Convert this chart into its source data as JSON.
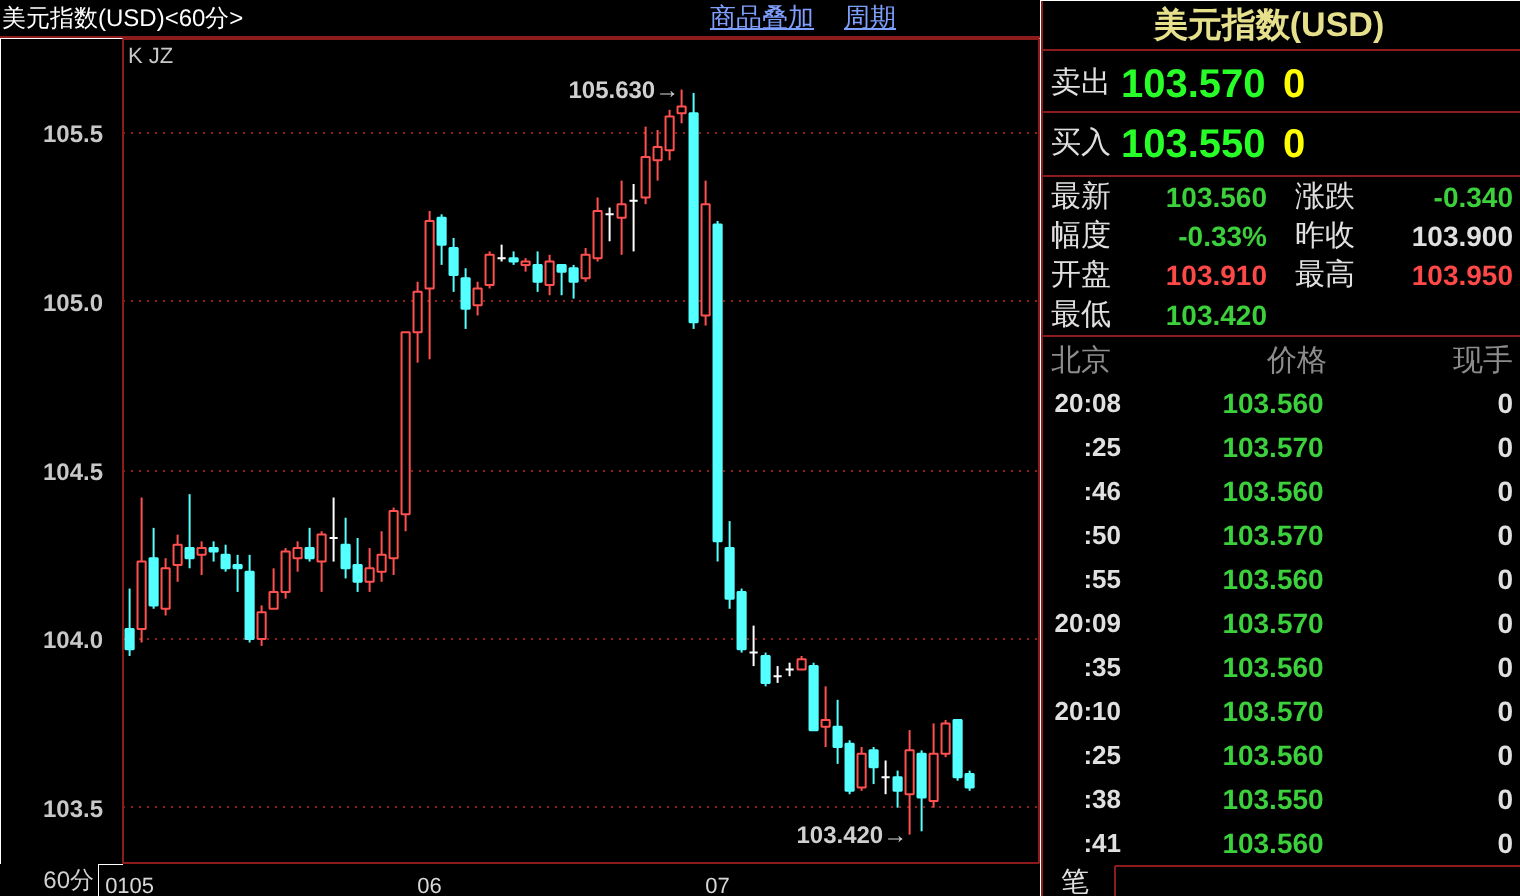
{
  "chart_data": [
    {
      "type": "candlestick",
      "title": "美元指数(USD)<60分>",
      "categories": [
        "0105",
        null,
        null,
        null,
        null,
        null,
        null,
        null,
        null,
        null,
        null,
        null,
        null,
        null,
        null,
        null,
        null,
        null,
        null,
        null,
        null,
        null,
        null,
        null,
        null,
        "06",
        null,
        null,
        null,
        null,
        null,
        null,
        null,
        null,
        null,
        null,
        null,
        null,
        null,
        null,
        null,
        null,
        null,
        null,
        null,
        null,
        null,
        null,
        null,
        "07",
        null,
        null,
        null,
        null,
        null,
        null,
        null,
        null,
        null,
        null,
        null,
        null,
        null,
        null,
        null,
        null,
        null,
        null,
        null,
        null,
        null
      ],
      "ohlc": [
        [
          104.03,
          104.15,
          103.95,
          103.97
        ],
        [
          104.03,
          104.42,
          103.99,
          104.23
        ],
        [
          104.24,
          104.33,
          104.09,
          104.1
        ],
        [
          104.09,
          104.24,
          104.07,
          104.21
        ],
        [
          104.22,
          104.31,
          104.17,
          104.28
        ],
        [
          104.27,
          104.43,
          104.21,
          104.24
        ],
        [
          104.25,
          104.29,
          104.19,
          104.27
        ],
        [
          104.27,
          104.29,
          104.23,
          104.26
        ],
        [
          104.25,
          104.28,
          104.2,
          104.21
        ],
        [
          104.22,
          104.25,
          104.14,
          104.21
        ],
        [
          104.2,
          104.25,
          103.99,
          104.0
        ],
        [
          104.0,
          104.1,
          103.98,
          104.08
        ],
        [
          104.09,
          104.21,
          104.09,
          104.14
        ],
        [
          104.14,
          104.27,
          104.12,
          104.26
        ],
        [
          104.24,
          104.29,
          104.2,
          104.27
        ],
        [
          104.27,
          104.33,
          104.23,
          104.24
        ],
        [
          104.23,
          104.32,
          104.14,
          104.31
        ],
        [
          104.3,
          104.42,
          104.23,
          104.3
        ],
        [
          104.28,
          104.36,
          104.18,
          104.21
        ],
        [
          104.22,
          104.3,
          104.14,
          104.17
        ],
        [
          104.17,
          104.27,
          104.14,
          104.21
        ],
        [
          104.2,
          104.32,
          104.17,
          104.25
        ],
        [
          104.24,
          104.39,
          104.19,
          104.38
        ],
        [
          104.37,
          104.91,
          104.32,
          104.91
        ],
        [
          104.91,
          105.06,
          104.82,
          105.03
        ],
        [
          105.04,
          105.27,
          104.83,
          105.24
        ],
        [
          105.25,
          105.26,
          105.11,
          105.17
        ],
        [
          105.16,
          105.19,
          105.03,
          105.08
        ],
        [
          105.07,
          105.1,
          104.92,
          104.98
        ],
        [
          104.99,
          105.06,
          104.96,
          105.04
        ],
        [
          105.05,
          105.15,
          105.04,
          105.14
        ],
        [
          105.13,
          105.17,
          105.12,
          105.13
        ],
        [
          105.13,
          105.15,
          105.11,
          105.12
        ],
        [
          105.11,
          105.13,
          105.09,
          105.12
        ],
        [
          105.11,
          105.15,
          105.03,
          105.06
        ],
        [
          105.05,
          105.14,
          105.02,
          105.12
        ],
        [
          105.11,
          105.11,
          105.02,
          105.09
        ],
        [
          105.1,
          105.11,
          105.01,
          105.06
        ],
        [
          105.07,
          105.16,
          105.06,
          105.14
        ],
        [
          105.13,
          105.31,
          105.12,
          105.27
        ],
        [
          105.26,
          105.28,
          105.18,
          105.26
        ],
        [
          105.25,
          105.36,
          105.14,
          105.29
        ],
        [
          105.3,
          105.35,
          105.15,
          105.3
        ],
        [
          105.31,
          105.52,
          105.29,
          105.43
        ],
        [
          105.42,
          105.51,
          105.36,
          105.46
        ],
        [
          105.45,
          105.57,
          105.42,
          105.55
        ],
        [
          105.56,
          105.63,
          105.53,
          105.58
        ],
        [
          105.56,
          105.62,
          104.92,
          104.94
        ],
        [
          104.96,
          105.36,
          104.93,
          105.29
        ],
        [
          105.23,
          105.24,
          104.23,
          104.29
        ],
        [
          104.27,
          104.35,
          104.09,
          104.12
        ],
        [
          104.14,
          104.15,
          103.96,
          103.97
        ],
        [
          103.96,
          104.04,
          103.92,
          103.96
        ],
        [
          103.95,
          103.96,
          103.86,
          103.87
        ],
        [
          103.89,
          103.92,
          103.87,
          103.89
        ],
        [
          103.91,
          103.93,
          103.89,
          103.91
        ],
        [
          103.91,
          103.95,
          103.91,
          103.94
        ],
        [
          103.92,
          103.93,
          103.73,
          103.73
        ],
        [
          103.74,
          103.86,
          103.68,
          103.76
        ],
        [
          103.74,
          103.82,
          103.63,
          103.68
        ],
        [
          103.69,
          103.7,
          103.54,
          103.55
        ],
        [
          103.56,
          103.68,
          103.55,
          103.66
        ],
        [
          103.67,
          103.68,
          103.57,
          103.62
        ],
        [
          103.59,
          103.64,
          103.54,
          103.59
        ],
        [
          103.59,
          103.61,
          103.5,
          103.55
        ],
        [
          103.54,
          103.73,
          103.42,
          103.67
        ],
        [
          103.66,
          103.67,
          103.43,
          103.53
        ],
        [
          103.52,
          103.75,
          103.5,
          103.66
        ],
        [
          103.66,
          103.76,
          103.65,
          103.75
        ],
        [
          103.76,
          103.76,
          103.58,
          103.59
        ],
        [
          103.6,
          103.61,
          103.55,
          103.56
        ]
      ],
      "colors": [
        "#54ffff",
        "#ff5050",
        "#54ffff",
        "#ff5050",
        "#ff5050",
        "#54ffff",
        "#ff5050",
        "#54ffff",
        "#54ffff",
        "#54ffff",
        "#54ffff",
        "#ff5050",
        "#ff5050",
        "#ff5050",
        "#ff5050",
        "#54ffff",
        "#ff5050",
        "#ffffff",
        "#54ffff",
        "#54ffff",
        "#ff5050",
        "#ff5050",
        "#ff5050",
        "#ff5050",
        "#ff5050",
        "#ff5050",
        "#54ffff",
        "#54ffff",
        "#54ffff",
        "#ff5050",
        "#ff5050",
        "#ffffff",
        "#54ffff",
        "#ff5050",
        "#54ffff",
        "#ff5050",
        "#54ffff",
        "#54ffff",
        "#ff5050",
        "#ff5050",
        "#ffffff",
        "#ff5050",
        "#ffffff",
        "#ff5050",
        "#ff5050",
        "#ff5050",
        "#ff5050",
        "#54ffff",
        "#ff5050",
        "#54ffff",
        "#54ffff",
        "#54ffff",
        "#ffffff",
        "#54ffff",
        "#ffffff",
        "#ffffff",
        "#ff5050",
        "#54ffff",
        "#ff5050",
        "#54ffff",
        "#54ffff",
        "#ff5050",
        "#54ffff",
        "#ffffff",
        "#54ffff",
        "#ff5050",
        "#54ffff",
        "#ff5050",
        "#ff5050",
        "#54ffff",
        "#54ffff"
      ],
      "ylim": [
        103.33,
        105.78
      ],
      "yticks": [
        103.5,
        {
          "value": 104.0,
          "label": "104.0"
        },
        104.5,
        {
          "value": 105.0,
          "label": "105.0"
        },
        105.5
      ],
      "grid": "y",
      "annotations": [
        "K JZ",
        "商品叠加",
        "周期",
        "60分",
        "105.630→",
        "103.420→"
      ]
    },
    {
      "type": "other",
      "title": "美元指数(USD)",
      "annotations": [
        "卖出",
        "103.570",
        "0",
        "买入",
        "103.550",
        "0",
        "最新",
        "103.560",
        "涨跌",
        "-0.340",
        "幅度",
        "-0.33%",
        "昨收",
        "103.900",
        "开盘",
        "103.910",
        "最高",
        "103.950",
        "最低",
        "103.420",
        "北京",
        "价格",
        "现手",
        "20:08",
        "103.560",
        "0",
        ":25",
        "103.570",
        "0",
        ":46",
        "103.560",
        "0",
        ":50",
        "103.570",
        "0",
        ":55",
        "103.560",
        "0",
        "20:09",
        "103.570",
        "0",
        ":35",
        "103.560",
        "0",
        "20:10",
        "103.570",
        "0",
        ":25",
        "103.560",
        "0",
        ":38",
        "103.550",
        "0",
        ":41",
        "103.560",
        "0",
        "笔"
      ]
    }
  ]
}
